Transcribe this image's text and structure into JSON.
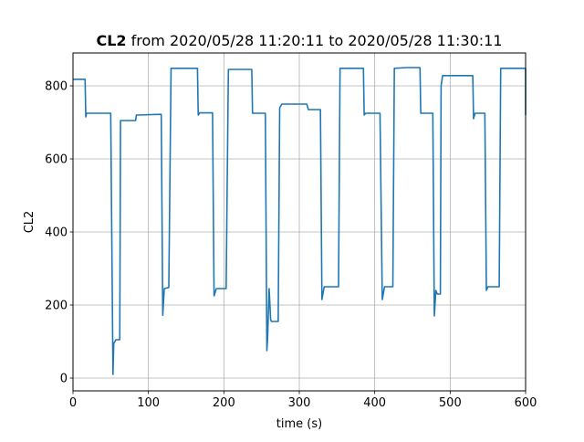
{
  "chart_data": {
    "type": "line",
    "title_bold": "CL2",
    "title_rest": " from 2020/05/28 11:20:11 to 2020/05/28 11:30:11",
    "xlabel": "time (s)",
    "ylabel": "CL2",
    "xlim": [
      0,
      600
    ],
    "ylim": [
      -35,
      890
    ],
    "xticks": [
      0,
      100,
      200,
      300,
      400,
      500,
      600
    ],
    "yticks": [
      0,
      200,
      400,
      600,
      800
    ],
    "grid": true,
    "series": [
      {
        "color": "#1f77b4",
        "points": [
          [
            0,
            818
          ],
          [
            16,
            818
          ],
          [
            17,
            715
          ],
          [
            18,
            725
          ],
          [
            50,
            725
          ],
          [
            53,
            10
          ],
          [
            54,
            95
          ],
          [
            57,
            105
          ],
          [
            62,
            105
          ],
          [
            63,
            705
          ],
          [
            83,
            705
          ],
          [
            84,
            720
          ],
          [
            117,
            722
          ],
          [
            119,
            172
          ],
          [
            121,
            245
          ],
          [
            127,
            248
          ],
          [
            130,
            848
          ],
          [
            165,
            848
          ],
          [
            166,
            720
          ],
          [
            168,
            726
          ],
          [
            185,
            726
          ],
          [
            187,
            225
          ],
          [
            190,
            245
          ],
          [
            203,
            245
          ],
          [
            206,
            845
          ],
          [
            237,
            845
          ],
          [
            238,
            725
          ],
          [
            255,
            725
          ],
          [
            257,
            75
          ],
          [
            258,
            110
          ],
          [
            260,
            245
          ],
          [
            262,
            160
          ],
          [
            263,
            155
          ],
          [
            272,
            155
          ],
          [
            274,
            740
          ],
          [
            277,
            750
          ],
          [
            310,
            750
          ],
          [
            312,
            735
          ],
          [
            328,
            735
          ],
          [
            330,
            215
          ],
          [
            333,
            250
          ],
          [
            352,
            250
          ],
          [
            354,
            848
          ],
          [
            385,
            848
          ],
          [
            386,
            720
          ],
          [
            388,
            725
          ],
          [
            407,
            725
          ],
          [
            410,
            215
          ],
          [
            413,
            250
          ],
          [
            424,
            250
          ],
          [
            426,
            848
          ],
          [
            442,
            850
          ],
          [
            460,
            850
          ],
          [
            461,
            725
          ],
          [
            477,
            725
          ],
          [
            479,
            170
          ],
          [
            481,
            240
          ],
          [
            483,
            230
          ],
          [
            487,
            230
          ],
          [
            488,
            800
          ],
          [
            490,
            828
          ],
          [
            530,
            828
          ],
          [
            531,
            710
          ],
          [
            533,
            725
          ],
          [
            546,
            725
          ],
          [
            548,
            240
          ],
          [
            550,
            250
          ],
          [
            565,
            250
          ],
          [
            567,
            848
          ],
          [
            600,
            848
          ],
          [
            600,
            720
          ]
        ]
      }
    ]
  }
}
